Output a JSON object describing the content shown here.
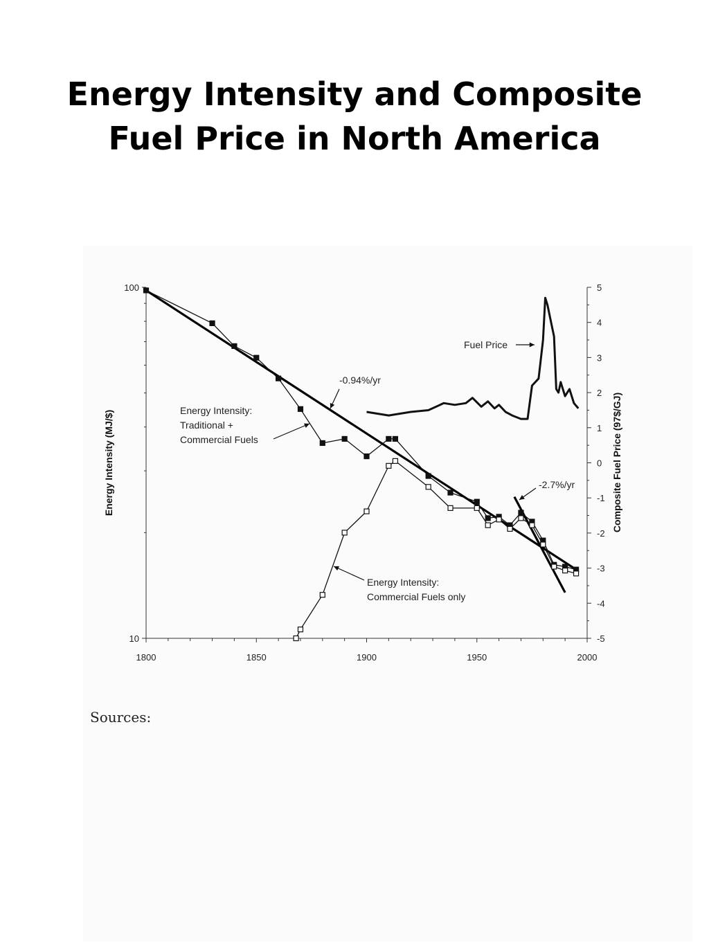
{
  "slide": {
    "title_line1": "Energy Intensity and Composite",
    "title_line2": "Fuel Price in North America",
    "sources_label": "Sources:"
  },
  "chart_data": {
    "type": "line",
    "x_axis": {
      "range": [
        1800,
        2000
      ],
      "ticks": [
        1800,
        1850,
        1900,
        1950,
        2000
      ],
      "minor_step": 10
    },
    "y_left": {
      "label": "Energy Intensity (MJ/$)",
      "scale": "log",
      "range": [
        10,
        100
      ],
      "ticks": [
        10,
        100
      ]
    },
    "y_right": {
      "label": "Composite Fuel Price (97$/GJ)",
      "scale": "linear",
      "range": [
        -5,
        5
      ],
      "ticks": [
        -5,
        -4,
        -3,
        -2,
        -1,
        0,
        1,
        2,
        3,
        4,
        5
      ]
    },
    "series": [
      {
        "name": "Energy Intensity: Traditional + Commercial Fuels",
        "axis": "left",
        "marker": "filled-square",
        "points": [
          [
            1800,
            98
          ],
          [
            1830,
            79
          ],
          [
            1840,
            68
          ],
          [
            1850,
            63
          ],
          [
            1860,
            55
          ],
          [
            1870,
            45
          ],
          [
            1880,
            36
          ],
          [
            1890,
            37
          ],
          [
            1900,
            33
          ],
          [
            1910,
            37
          ],
          [
            1913,
            37
          ],
          [
            1928,
            29
          ],
          [
            1938,
            26
          ],
          [
            1950,
            24.5
          ],
          [
            1955,
            22
          ],
          [
            1960,
            22.2
          ],
          [
            1965,
            21
          ],
          [
            1970,
            22.8
          ],
          [
            1975,
            21.5
          ],
          [
            1980,
            19
          ],
          [
            1985,
            16.2
          ],
          [
            1990,
            16
          ],
          [
            1995,
            15.7
          ]
        ]
      },
      {
        "name": "Energy Intensity: Commercial Fuels only",
        "axis": "left",
        "marker": "open-square",
        "points": [
          [
            1868,
            10
          ],
          [
            1870,
            10.6
          ],
          [
            1880,
            13.3
          ],
          [
            1890,
            20
          ],
          [
            1900,
            23
          ],
          [
            1910,
            31
          ],
          [
            1913,
            32
          ],
          [
            1928,
            27
          ],
          [
            1938,
            23.5
          ],
          [
            1950,
            23.5
          ],
          [
            1955,
            21
          ],
          [
            1960,
            21.8
          ],
          [
            1965,
            20.5
          ],
          [
            1970,
            22
          ],
          [
            1975,
            21
          ],
          [
            1980,
            18.5
          ],
          [
            1985,
            16
          ],
          [
            1990,
            15.6
          ],
          [
            1995,
            15.3
          ]
        ]
      },
      {
        "name": "Fuel Price",
        "axis": "right",
        "marker": "none",
        "points": [
          [
            1900,
            1.45
          ],
          [
            1910,
            1.35
          ],
          [
            1920,
            1.45
          ],
          [
            1928,
            1.5
          ],
          [
            1935,
            1.7
          ],
          [
            1940,
            1.65
          ],
          [
            1945,
            1.7
          ],
          [
            1948,
            1.85
          ],
          [
            1952,
            1.6
          ],
          [
            1955,
            1.75
          ],
          [
            1958,
            1.55
          ],
          [
            1960,
            1.65
          ],
          [
            1963,
            1.45
          ],
          [
            1966,
            1.35
          ],
          [
            1970,
            1.25
          ],
          [
            1973,
            1.25
          ],
          [
            1975,
            2.2
          ],
          [
            1978,
            2.4
          ],
          [
            1980,
            3.5
          ],
          [
            1981,
            4.7
          ],
          [
            1982,
            4.5
          ],
          [
            1984,
            3.9
          ],
          [
            1985,
            3.6
          ],
          [
            1986,
            2.1
          ],
          [
            1987,
            2.0
          ],
          [
            1988,
            2.3
          ],
          [
            1990,
            1.9
          ],
          [
            1992,
            2.1
          ],
          [
            1994,
            1.7
          ],
          [
            1996,
            1.55
          ]
        ]
      }
    ],
    "trend_lines": [
      {
        "label": "-0.94%/yr",
        "axis": "left",
        "from": [
          1800,
          98
        ],
        "to": [
          1995,
          15.7
        ]
      },
      {
        "label": "-2.7%/yr",
        "axis": "left",
        "from": [
          1967,
          25.3
        ],
        "to": [
          1990,
          13.5
        ]
      }
    ],
    "annotations": [
      {
        "text_lines": [
          "Fuel Price"
        ]
      },
      {
        "text_lines": [
          "-0.94%/yr"
        ]
      },
      {
        "text_lines": [
          "Energy Intensity:",
          "Traditional +",
          "Commercial Fuels"
        ]
      },
      {
        "text_lines": [
          "-2.7%/yr"
        ]
      },
      {
        "text_lines": [
          "Energy Intensity:",
          "Commercial Fuels only"
        ]
      }
    ],
    "grid": false,
    "legend": "none"
  }
}
